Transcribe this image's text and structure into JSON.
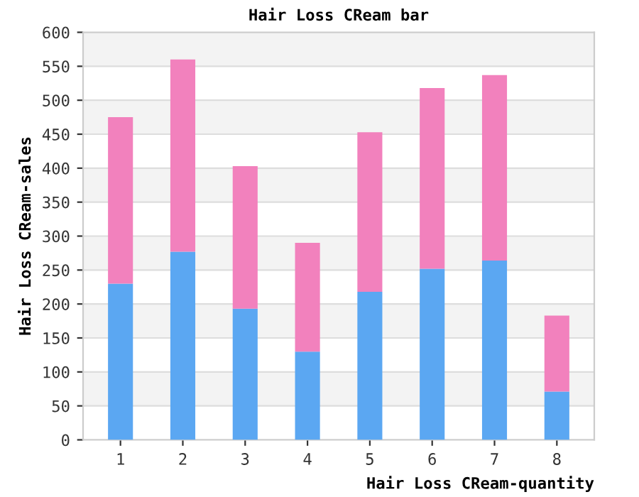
{
  "chart_data": {
    "type": "bar",
    "title": "Hair Loss CReam bar",
    "xlabel": "Hair Loss CReam-quantity",
    "ylabel": "Hair Loss CReam-sales",
    "categories": [
      "1",
      "2",
      "3",
      "4",
      "5",
      "6",
      "7",
      "8"
    ],
    "stacked": true,
    "series": [
      {
        "color": "#5ba7f2",
        "values": [
          230,
          277,
          193,
          130,
          218,
          252,
          264,
          71
        ]
      },
      {
        "color": "#f281bd",
        "values": [
          245,
          283,
          210,
          160,
          235,
          266,
          273,
          112
        ]
      }
    ],
    "ylim": [
      0,
      600
    ],
    "yticks": [
      0,
      50,
      100,
      150,
      200,
      250,
      300,
      350,
      400,
      450,
      500,
      550,
      600
    ],
    "grid": "y",
    "legend": false
  }
}
